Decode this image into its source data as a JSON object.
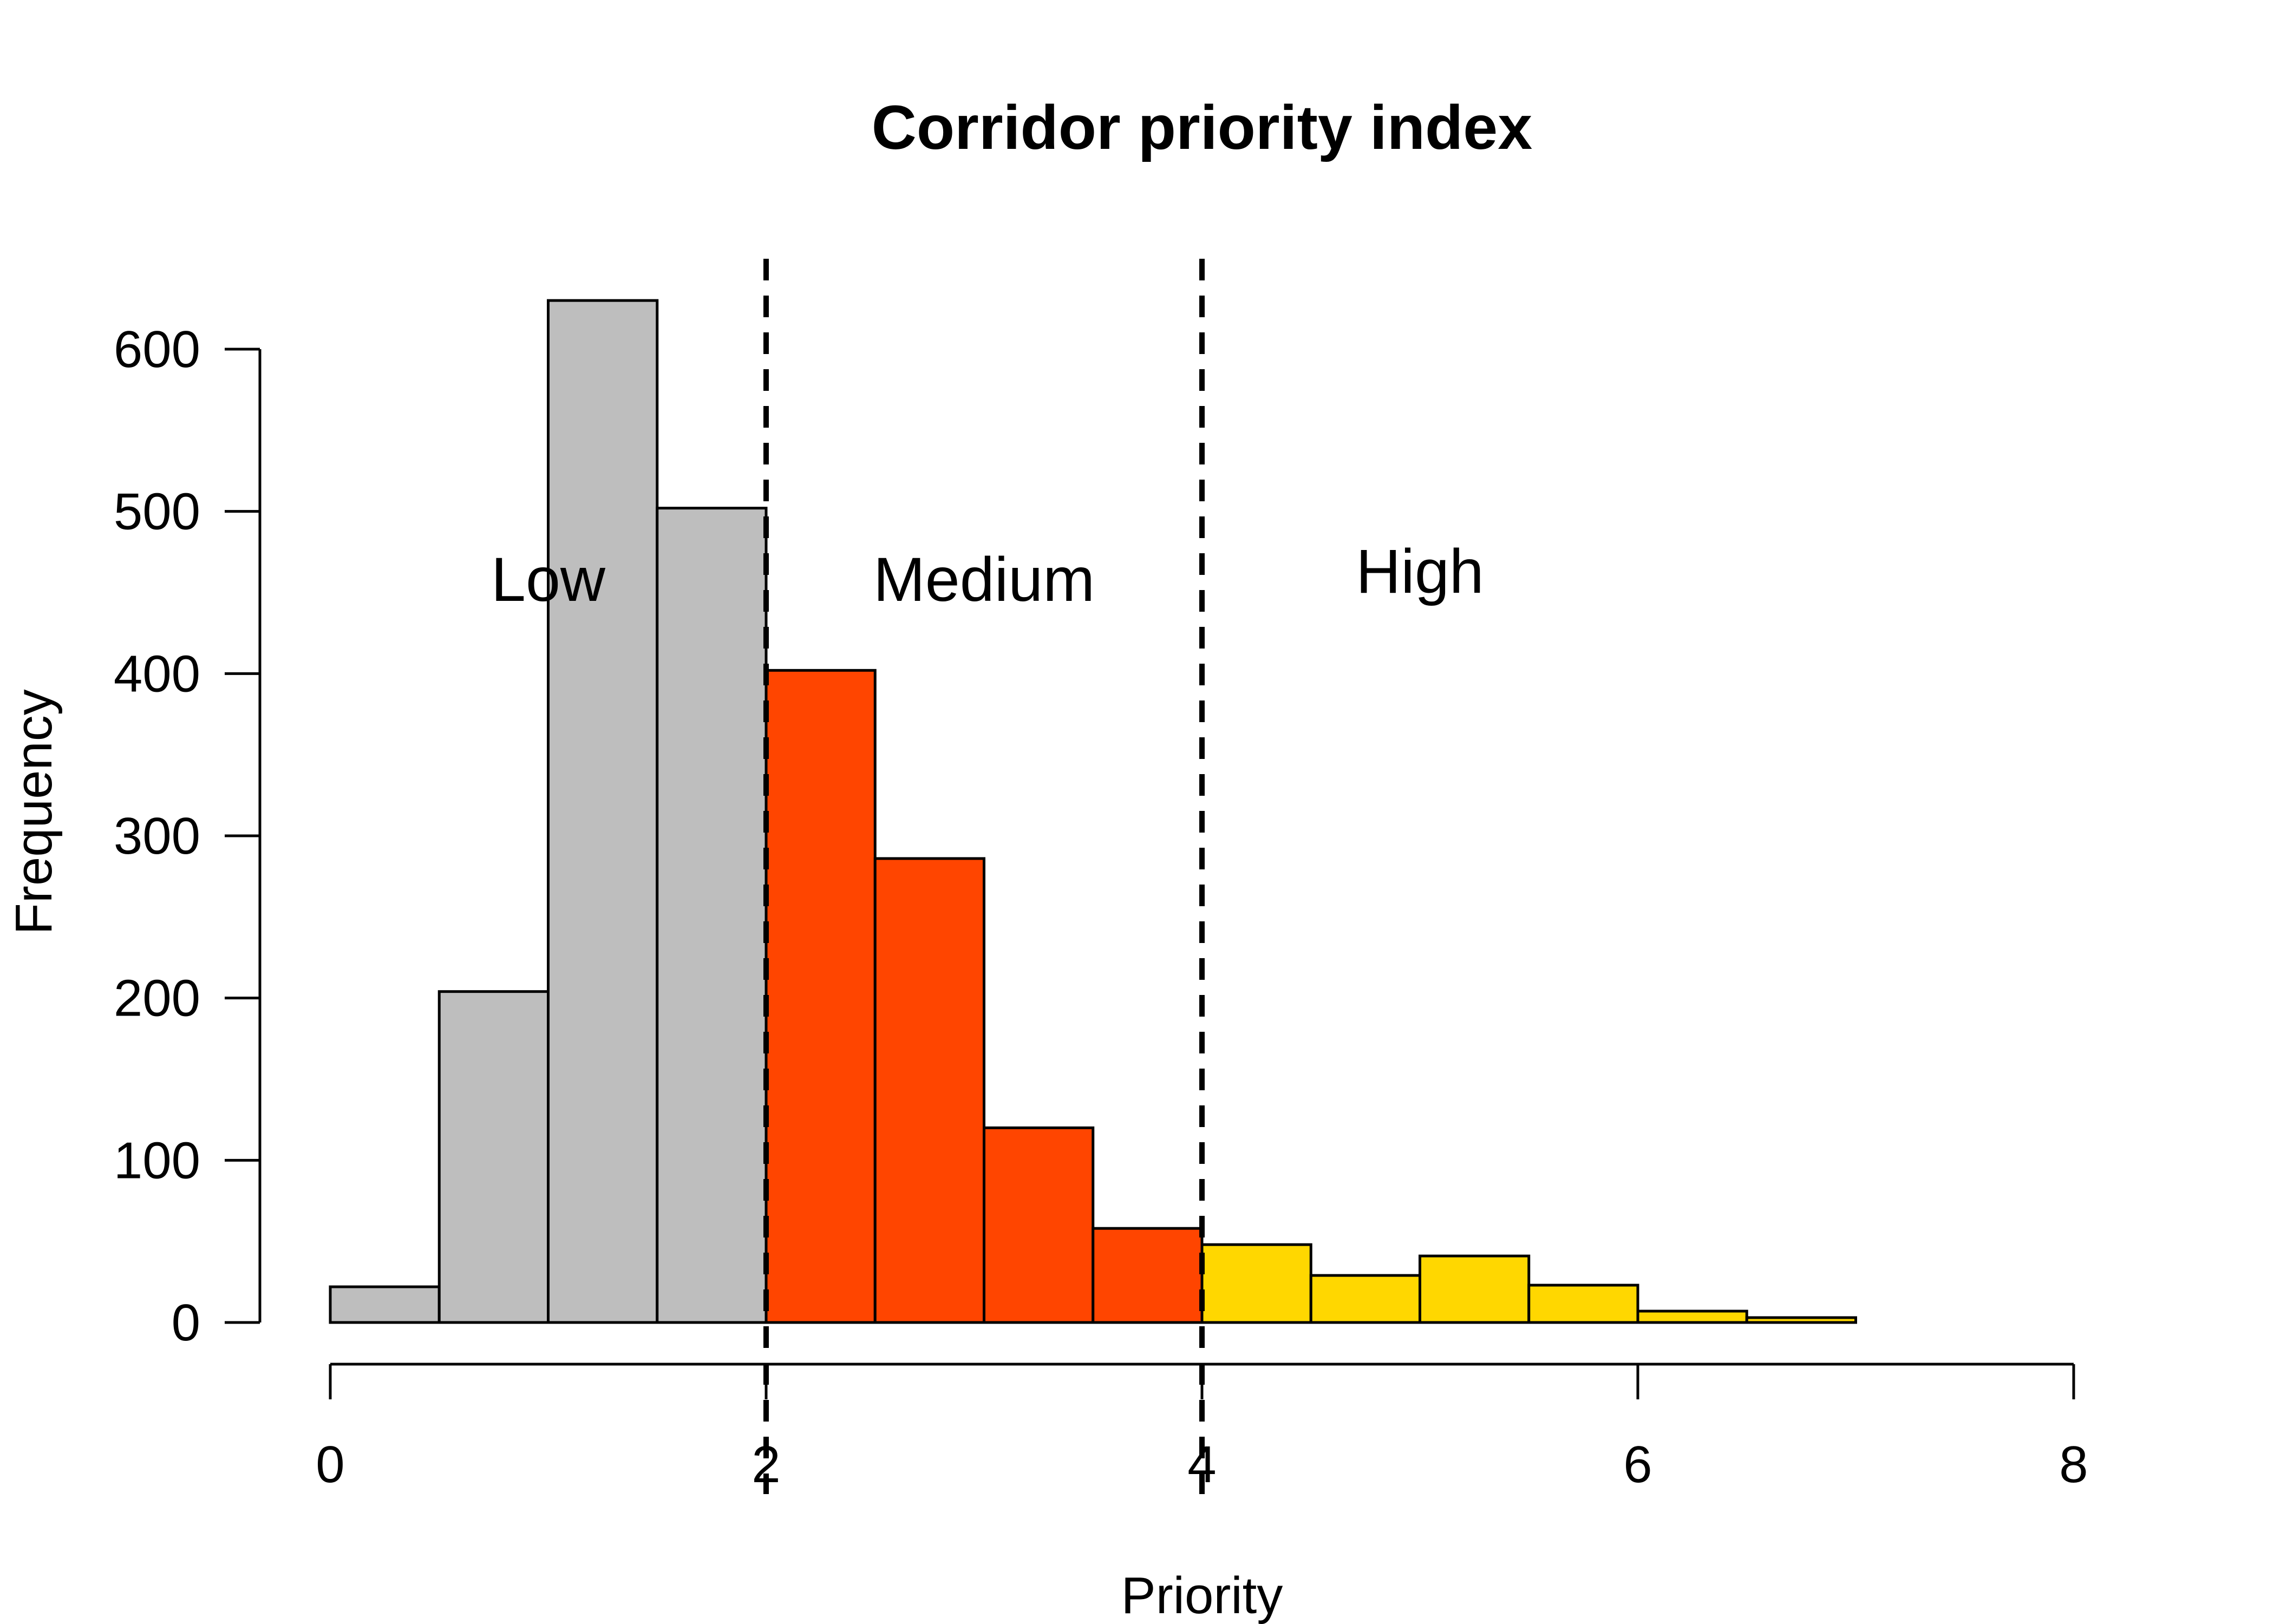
{
  "chart_data": {
    "type": "bar",
    "title": "Corridor priority index",
    "xlabel": "Priority",
    "ylabel": "Frequency",
    "xlim": [
      0,
      8
    ],
    "ylim": [
      0,
      600
    ],
    "x_ticks": [
      0,
      2,
      4,
      6,
      8
    ],
    "y_ticks": [
      0,
      100,
      200,
      300,
      400,
      500,
      600
    ],
    "grid": false,
    "legend": "none",
    "thresholds": [
      2,
      4
    ],
    "bands": [
      {
        "label": "Low",
        "x_from": 0,
        "x_to": 2,
        "color": "#BEBEBE"
      },
      {
        "label": "Medium",
        "x_from": 2,
        "x_to": 4,
        "color": "#FF4500"
      },
      {
        "label": "High",
        "x_from": 4,
        "x_to": 8,
        "color": "#FFD700"
      }
    ],
    "bins": [
      {
        "x0": 0.0,
        "x1": 0.5,
        "value": 22,
        "color": "#BEBEBE"
      },
      {
        "x0": 0.5,
        "x1": 1.0,
        "value": 204,
        "color": "#BEBEBE"
      },
      {
        "x0": 1.0,
        "x1": 1.5,
        "value": 630,
        "color": "#BEBEBE"
      },
      {
        "x0": 1.5,
        "x1": 2.0,
        "value": 502,
        "color": "#BEBEBE"
      },
      {
        "x0": 2.0,
        "x1": 2.5,
        "value": 402,
        "color": "#FF4500"
      },
      {
        "x0": 2.5,
        "x1": 3.0,
        "value": 286,
        "color": "#FF4500"
      },
      {
        "x0": 3.0,
        "x1": 3.5,
        "value": 120,
        "color": "#FF4500"
      },
      {
        "x0": 3.5,
        "x1": 4.0,
        "value": 58,
        "color": "#FF4500"
      },
      {
        "x0": 4.0,
        "x1": 4.5,
        "value": 48,
        "color": "#FFD700"
      },
      {
        "x0": 4.5,
        "x1": 5.0,
        "value": 29,
        "color": "#FFD700"
      },
      {
        "x0": 5.0,
        "x1": 5.5,
        "value": 41,
        "color": "#FFD700"
      },
      {
        "x0": 5.5,
        "x1": 6.0,
        "value": 23,
        "color": "#FFD700"
      },
      {
        "x0": 6.0,
        "x1": 6.5,
        "value": 7,
        "color": "#FFD700"
      },
      {
        "x0": 6.5,
        "x1": 7.0,
        "value": 3,
        "color": "#FFD700"
      },
      {
        "x0": 7.0,
        "x1": 7.5,
        "value": 0,
        "color": "#FFD700"
      },
      {
        "x0": 7.5,
        "x1": 8.0,
        "value": 0,
        "color": "#FFD700"
      }
    ]
  }
}
